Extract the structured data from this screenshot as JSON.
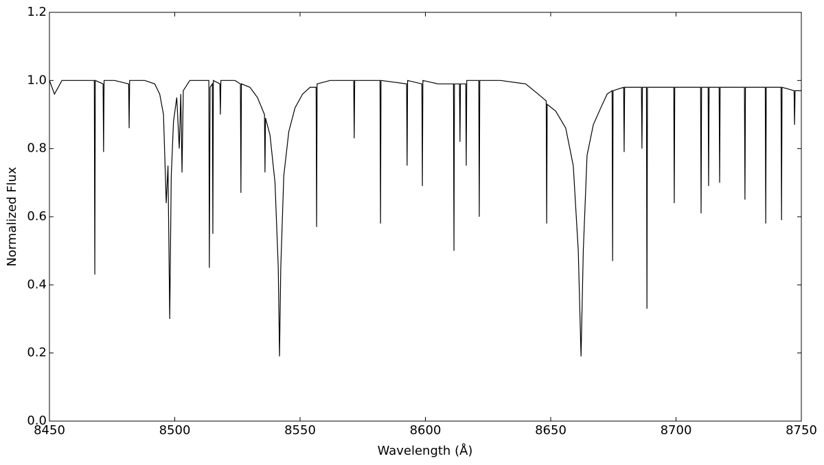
{
  "chart_data": {
    "type": "line",
    "xlabel": "Wavelength (Å)",
    "ylabel": "Normalized Flux",
    "color": "#000000",
    "xlim": [
      8450,
      8750
    ],
    "xticks": [
      8450,
      8500,
      8550,
      8600,
      8650,
      8700,
      8750
    ],
    "ylim": [
      0,
      1.2
    ],
    "yticks": [
      {
        "value": 0,
        "label": "0.0"
      },
      0.2,
      0.4,
      0.6,
      0.8,
      {
        "value": 1,
        "label": "1.0"
      },
      1.2
    ],
    "grid": false,
    "x": [
      8450,
      8452,
      8455,
      8460,
      8467.9,
      8468.1,
      8468.3,
      8471.4,
      8471.6,
      8471.8,
      8476,
      8481.6,
      8481.8,
      8482,
      8488,
      8492,
      8494,
      8495.5,
      8496.6,
      8497.3,
      8498.0,
      8498.6,
      8499.5,
      8500.8,
      8501.8,
      8502.4,
      8502.9,
      8503.4,
      8506,
      8510,
      8513.6,
      8513.8,
      8514.1,
      8515.0,
      8515.2,
      8515.4,
      8518.0,
      8518.2,
      8518.4,
      8524,
      8526.2,
      8526.4,
      8526.6,
      8530,
      8533,
      8535.8,
      8536.0,
      8536.2,
      8538,
      8540,
      8541.3,
      8541.8,
      8542.3,
      8543.5,
      8545.5,
      8548,
      8551,
      8554,
      8556.4,
      8556.6,
      8556.8,
      8562,
      8571.4,
      8571.6,
      8571.8,
      8581.9,
      8582.1,
      8582.3,
      8592.5,
      8592.7,
      8592.9,
      8598.6,
      8598.8,
      8599.0,
      8605,
      8611.2,
      8611.4,
      8611.6,
      8613.6,
      8613.8,
      8614.0,
      8616.1,
      8616.3,
      8616.5,
      8621.3,
      8621.5,
      8621.7,
      8630,
      8640,
      8645,
      8648.2,
      8648.4,
      8648.6,
      8652,
      8656,
      8659,
      8661.0,
      8662.1,
      8663.0,
      8664.5,
      8667,
      8670,
      8672.5,
      8674.5,
      8674.7,
      8674.9,
      8679.1,
      8679.3,
      8679.5,
      8686.2,
      8686.4,
      8686.6,
      8688.2,
      8688.4,
      8688.6,
      8695,
      8699.1,
      8699.3,
      8699.5,
      8709.8,
      8710.0,
      8710.2,
      8712.8,
      8713.0,
      8713.2,
      8717.2,
      8717.4,
      8717.6,
      8727.3,
      8727.5,
      8727.7,
      8735.6,
      8735.8,
      8736.0,
      8741.9,
      8742.1,
      8742.3,
      8747.1,
      8747.3,
      8747.5,
      8750
    ],
    "values": [
      1.0,
      0.96,
      1.0,
      1.0,
      1.0,
      0.43,
      1.0,
      0.99,
      0.79,
      1.0,
      1.0,
      0.99,
      0.86,
      1.0,
      1.0,
      0.99,
      0.96,
      0.9,
      0.64,
      0.75,
      0.3,
      0.72,
      0.88,
      0.95,
      0.8,
      0.96,
      0.73,
      0.97,
      1.0,
      1.0,
      1.0,
      0.45,
      0.98,
      0.99,
      0.55,
      1.0,
      0.99,
      0.9,
      1.0,
      1.0,
      0.99,
      0.67,
      0.99,
      0.98,
      0.95,
      0.9,
      0.73,
      0.89,
      0.84,
      0.7,
      0.45,
      0.19,
      0.45,
      0.72,
      0.85,
      0.92,
      0.96,
      0.98,
      0.98,
      0.57,
      0.99,
      1.0,
      1.0,
      0.83,
      1.0,
      1.0,
      0.58,
      1.0,
      0.99,
      0.75,
      1.0,
      0.99,
      0.69,
      1.0,
      0.99,
      0.99,
      0.5,
      0.99,
      0.99,
      0.82,
      0.99,
      0.99,
      0.75,
      1.0,
      1.0,
      0.6,
      1.0,
      1.0,
      0.99,
      0.96,
      0.94,
      0.58,
      0.93,
      0.91,
      0.86,
      0.75,
      0.5,
      0.19,
      0.5,
      0.78,
      0.87,
      0.92,
      0.96,
      0.97,
      0.47,
      0.97,
      0.98,
      0.79,
      0.98,
      0.98,
      0.8,
      0.98,
      0.98,
      0.33,
      0.98,
      0.98,
      0.98,
      0.64,
      0.98,
      0.98,
      0.61,
      0.98,
      0.98,
      0.69,
      0.98,
      0.98,
      0.7,
      0.98,
      0.98,
      0.65,
      0.98,
      0.98,
      0.58,
      0.98,
      0.98,
      0.59,
      0.98,
      0.97,
      0.87,
      0.97,
      0.97
    ]
  }
}
